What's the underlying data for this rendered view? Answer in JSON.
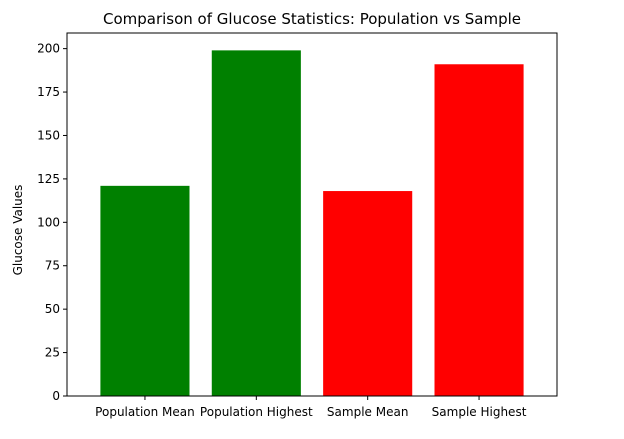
{
  "chart_data": {
    "type": "bar",
    "title": "Comparison of Glucose Statistics: Population vs Sample",
    "xlabel": "",
    "ylabel": "Glucose Values",
    "categories": [
      "Population Mean",
      "Population Highest",
      "Sample Mean",
      "Sample Highest"
    ],
    "values": [
      121,
      199,
      118,
      191
    ],
    "bar_colors": [
      "#008000",
      "#008000",
      "#ff0000",
      "#ff0000"
    ],
    "ylim": [
      0,
      209
    ],
    "yticks": [
      0,
      25,
      50,
      75,
      100,
      125,
      150,
      175,
      200
    ],
    "grid": false,
    "legend": "none"
  }
}
